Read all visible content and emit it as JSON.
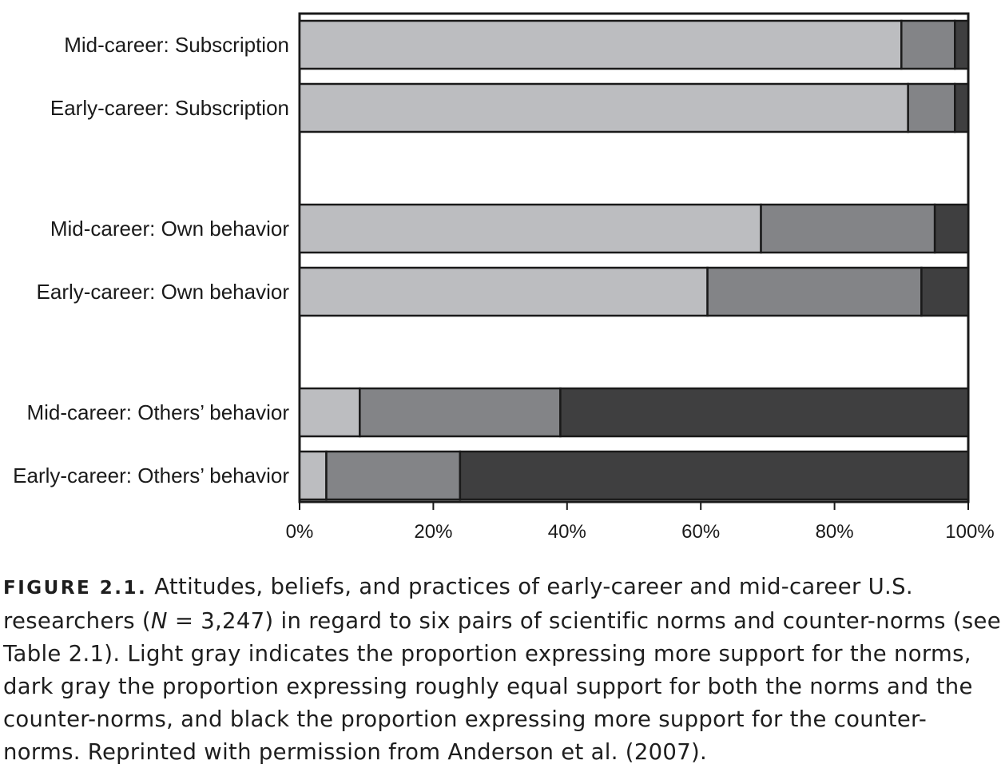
{
  "chart_data": {
    "type": "bar",
    "orientation": "horizontal",
    "stacked": true,
    "categories": [
      "Mid-career: Subscription",
      "Early-career: Subscription",
      "Mid-career: Own behavior",
      "Early-career: Own behavior",
      "Mid-career: Others’ behavior",
      "Early-career: Others’ behavior"
    ],
    "series": [
      {
        "color": "#bcbdc0",
        "values": [
          90,
          91,
          69,
          61,
          9,
          4
        ]
      },
      {
        "color": "#838487",
        "values": [
          8,
          7,
          26,
          32,
          30,
          20
        ]
      },
      {
        "color": "#3f3f40",
        "values": [
          2,
          2,
          5,
          7,
          61,
          76
        ]
      }
    ],
    "xlim": [
      0,
      100
    ],
    "x_ticks": [
      "0%",
      "20%",
      "40%",
      "60%",
      "80%",
      "100%"
    ],
    "grid": false,
    "legend": "none"
  },
  "caption": {
    "figure_label": "FIGURE 2.1.",
    "part1": " Attitudes, beliefs, and practices of early-career and mid-career U.S. researchers (",
    "n_symbol": "N",
    "part2": " = 3,247) in regard to six pairs of scientific norms and counter-norms (see Table 2.1). Light gray indicates the proportion expressing more support for the norms, dark gray the proportion expressing roughly equal support for both the norms and the counter-norms, and black the proportion expressing more support for the counter-norms. Reprinted with permission from Anderson et al. (2007)."
  }
}
